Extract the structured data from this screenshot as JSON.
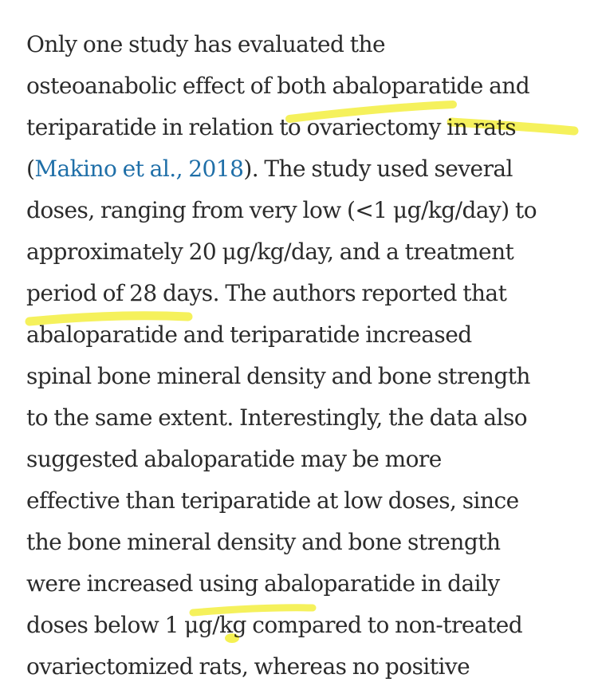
{
  "article": {
    "lines": [
      "Only one study has evaluated the",
      "osteoanabolic effect of both abaloparatide and",
      "teriparatide in relation to ovariectomy in rats",
      {
        "before": "(",
        "link": "Makino et al., 2018",
        "after": "). The study used several"
      },
      "doses, ranging from very low (<1 μg/kg/day) to",
      "approximately 20 μg/kg/day, and a treatment",
      "period of 28 days. The authors reported that",
      "abaloparatide and teriparatide increased",
      "spinal bone mineral density and bone strength",
      "to the same extent. Interestingly, the data also",
      "suggested abaloparatide may be more",
      "effective than teriparatide at low doses, since",
      "the bone mineral density and bone strength",
      "were increased using abaloparatide in daily",
      "doses below 1 μg/kg compared to non-treated",
      "ovariectomized rats, whereas no positive"
    ]
  },
  "colors": {
    "text": "#2b2b2b",
    "link": "#1f6fa8",
    "highlight": "#f4f04a"
  }
}
